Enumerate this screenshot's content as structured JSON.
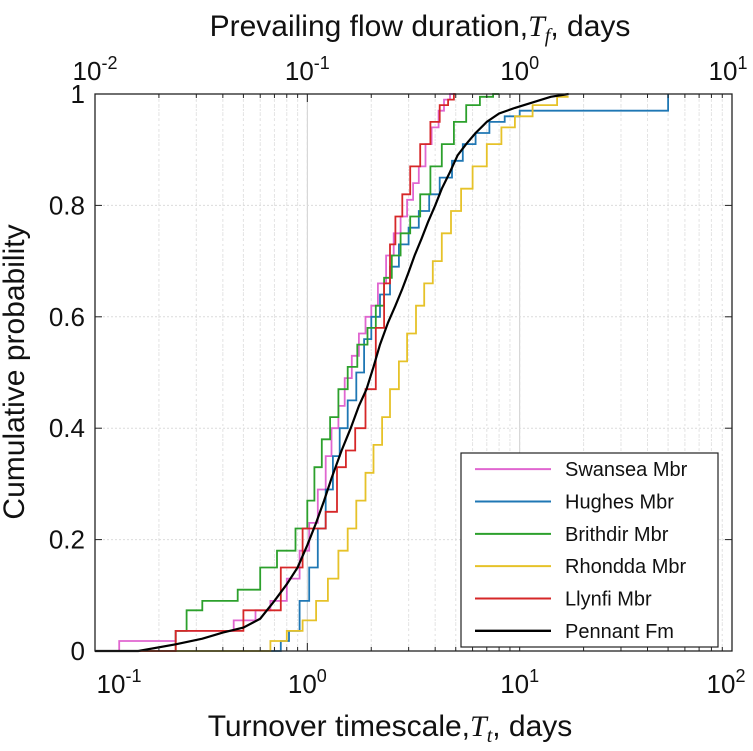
{
  "chart_data": {
    "type": "line",
    "subtype": "empirical-cdf-step",
    "title": "",
    "top_axis": {
      "label_main": "Prevailing flow duration,",
      "label_var": "T",
      "label_sub": "f",
      "label_unit": ", days",
      "scale": "log",
      "range": [
        0.01,
        10
      ],
      "ticks": [
        {
          "value": 0.01,
          "base": "10",
          "exp": "-2"
        },
        {
          "value": 0.1,
          "base": "10",
          "exp": "-1"
        },
        {
          "value": 1,
          "base": "10",
          "exp": "0"
        },
        {
          "value": 10,
          "base": "10",
          "exp": "1"
        }
      ]
    },
    "x_axis": {
      "label_main": "Turnover timescale,",
      "label_var": "T",
      "label_sub": "t",
      "label_unit": ", days",
      "scale": "log",
      "range": [
        0.1,
        100
      ],
      "ticks": [
        {
          "value": 0.1,
          "base": "10",
          "exp": "-1"
        },
        {
          "value": 1,
          "base": "10",
          "exp": "0"
        },
        {
          "value": 10,
          "base": "10",
          "exp": "1"
        },
        {
          "value": 100,
          "base": "10",
          "exp": "2"
        }
      ]
    },
    "y_axis": {
      "label": "Cumulative probability",
      "range": [
        0,
        1
      ],
      "ticks": [
        {
          "value": 0,
          "label": "0"
        },
        {
          "value": 0.2,
          "label": "0.2"
        },
        {
          "value": 0.4,
          "label": "0.4"
        },
        {
          "value": 0.6,
          "label": "0.6"
        },
        {
          "value": 0.8,
          "label": "0.8"
        },
        {
          "value": 1,
          "label": "1"
        }
      ]
    },
    "grid": true,
    "legend_position": "bottom-right",
    "series": [
      {
        "name": "Swansea Mbr",
        "color": "#e066d0",
        "x": [
          0.1,
          0.13,
          0.13,
          0.24,
          0.24,
          0.45,
          0.45,
          0.57,
          0.57,
          0.67,
          0.67,
          0.8,
          0.8,
          0.92,
          0.92,
          1.02,
          1.02,
          1.12,
          1.12,
          1.22,
          1.22,
          1.3,
          1.3,
          1.4,
          1.4,
          1.5,
          1.5,
          1.62,
          1.62,
          1.75,
          1.75,
          1.88,
          1.88,
          2.0,
          2.0,
          2.15,
          2.15,
          2.35,
          2.35,
          2.55,
          2.55,
          2.75,
          2.75,
          2.95,
          2.95,
          3.15,
          3.15,
          3.35,
          3.35,
          3.6,
          3.6,
          3.85,
          3.85,
          4.15,
          4.15,
          4.4,
          4.4,
          4.7,
          4.7,
          5.0
        ],
        "y": [
          0.0,
          0.0,
          0.018,
          0.018,
          0.036,
          0.036,
          0.055,
          0.055,
          0.073,
          0.073,
          0.09,
          0.09,
          0.13,
          0.13,
          0.18,
          0.18,
          0.23,
          0.23,
          0.29,
          0.29,
          0.35,
          0.35,
          0.4,
          0.4,
          0.44,
          0.44,
          0.49,
          0.49,
          0.53,
          0.53,
          0.57,
          0.57,
          0.6,
          0.6,
          0.62,
          0.62,
          0.66,
          0.66,
          0.71,
          0.71,
          0.75,
          0.75,
          0.78,
          0.78,
          0.81,
          0.81,
          0.84,
          0.84,
          0.87,
          0.87,
          0.91,
          0.91,
          0.94,
          0.94,
          0.97,
          0.97,
          0.99,
          0.99,
          1.0,
          1.0
        ]
      },
      {
        "name": "Hughes Mbr",
        "color": "#1f77b4",
        "x": [
          0.1,
          0.75,
          0.75,
          0.82,
          0.82,
          0.92,
          0.92,
          1.02,
          1.02,
          1.12,
          1.12,
          1.22,
          1.22,
          1.32,
          1.32,
          1.42,
          1.42,
          1.55,
          1.55,
          1.7,
          1.7,
          1.85,
          1.85,
          2.0,
          2.0,
          2.2,
          2.2,
          2.45,
          2.45,
          2.7,
          2.7,
          3.0,
          3.0,
          3.35,
          3.35,
          3.75,
          3.75,
          4.2,
          4.2,
          4.8,
          4.8,
          5.4,
          5.4,
          6.2,
          6.2,
          7.2,
          7.2,
          8.5,
          8.5,
          10.0,
          10.0,
          13.0,
          13.0,
          50.0,
          50.0
        ],
        "y": [
          0.0,
          0.0,
          0.018,
          0.018,
          0.036,
          0.036,
          0.09,
          0.09,
          0.15,
          0.15,
          0.22,
          0.22,
          0.29,
          0.29,
          0.35,
          0.35,
          0.4,
          0.4,
          0.45,
          0.45,
          0.5,
          0.5,
          0.56,
          0.56,
          0.6,
          0.6,
          0.64,
          0.64,
          0.69,
          0.69,
          0.73,
          0.73,
          0.76,
          0.76,
          0.79,
          0.79,
          0.82,
          0.82,
          0.85,
          0.85,
          0.88,
          0.88,
          0.91,
          0.91,
          0.93,
          0.93,
          0.95,
          0.95,
          0.96,
          0.96,
          0.97,
          0.97,
          0.97,
          0.97,
          1.0
        ]
      },
      {
        "name": "Brithdir Mbr",
        "color": "#2ca02c",
        "x": [
          0.1,
          0.24,
          0.24,
          0.27,
          0.27,
          0.32,
          0.32,
          0.47,
          0.47,
          0.6,
          0.6,
          0.72,
          0.72,
          0.88,
          0.88,
          1.0,
          1.0,
          1.08,
          1.08,
          1.17,
          1.17,
          1.28,
          1.28,
          1.4,
          1.4,
          1.55,
          1.55,
          1.72,
          1.72,
          1.92,
          1.92,
          2.1,
          2.1,
          2.3,
          2.3,
          2.5,
          2.5,
          2.75,
          2.75,
          3.05,
          3.05,
          3.4,
          3.4,
          3.8,
          3.8,
          4.3,
          4.3,
          4.9,
          4.9,
          5.6,
          5.6,
          6.5,
          6.5,
          7.5,
          7.5,
          8.0
        ],
        "y": [
          0.0,
          0.0,
          0.036,
          0.036,
          0.073,
          0.073,
          0.09,
          0.09,
          0.11,
          0.11,
          0.15,
          0.15,
          0.18,
          0.18,
          0.22,
          0.22,
          0.27,
          0.27,
          0.33,
          0.33,
          0.38,
          0.38,
          0.42,
          0.42,
          0.47,
          0.47,
          0.51,
          0.51,
          0.55,
          0.55,
          0.58,
          0.58,
          0.62,
          0.62,
          0.67,
          0.67,
          0.71,
          0.71,
          0.75,
          0.75,
          0.78,
          0.78,
          0.82,
          0.82,
          0.87,
          0.87,
          0.91,
          0.91,
          0.95,
          0.95,
          0.98,
          0.98,
          0.995,
          0.995,
          1.0,
          1.0
        ]
      },
      {
        "name": "Rhondda Mbr",
        "color": "#e6c229",
        "x": [
          0.1,
          0.67,
          0.67,
          0.8,
          0.8,
          0.95,
          0.95,
          1.1,
          1.1,
          1.25,
          1.25,
          1.4,
          1.4,
          1.55,
          1.55,
          1.7,
          1.7,
          1.88,
          1.88,
          2.05,
          2.05,
          2.25,
          2.25,
          2.45,
          2.45,
          2.7,
          2.7,
          2.95,
          2.95,
          3.25,
          3.25,
          3.55,
          3.55,
          3.9,
          3.9,
          4.3,
          4.3,
          4.75,
          4.75,
          5.3,
          5.3,
          6.0,
          6.0,
          7.0,
          7.0,
          8.2,
          8.2,
          9.5,
          9.5,
          11.5,
          11.5,
          15.0,
          15.0,
          17.0
        ],
        "y": [
          0.0,
          0.0,
          0.018,
          0.018,
          0.036,
          0.036,
          0.055,
          0.055,
          0.09,
          0.09,
          0.13,
          0.13,
          0.18,
          0.18,
          0.22,
          0.22,
          0.27,
          0.27,
          0.32,
          0.32,
          0.37,
          0.37,
          0.42,
          0.42,
          0.47,
          0.47,
          0.52,
          0.52,
          0.57,
          0.57,
          0.62,
          0.62,
          0.66,
          0.66,
          0.7,
          0.7,
          0.75,
          0.75,
          0.79,
          0.79,
          0.83,
          0.83,
          0.87,
          0.87,
          0.91,
          0.91,
          0.94,
          0.94,
          0.96,
          0.96,
          0.98,
          0.98,
          0.995,
          0.995
        ]
      },
      {
        "name": "Llynfi Mbr",
        "color": "#d62728",
        "x": [
          0.1,
          0.24,
          0.24,
          0.5,
          0.5,
          0.75,
          0.75,
          0.95,
          0.95,
          1.22,
          1.22,
          1.38,
          1.38,
          1.52,
          1.52,
          1.68,
          1.68,
          1.88,
          1.88,
          2.1,
          2.1,
          2.3,
          2.3,
          2.45,
          2.45,
          2.6,
          2.6,
          2.8,
          2.8,
          3.05,
          3.05,
          3.4,
          3.4,
          3.8,
          3.8,
          4.2,
          4.2,
          4.6,
          4.6,
          4.9,
          4.9,
          5.0
        ],
        "y": [
          0.0,
          0.0,
          0.036,
          0.036,
          0.073,
          0.073,
          0.15,
          0.15,
          0.22,
          0.22,
          0.25,
          0.25,
          0.33,
          0.33,
          0.36,
          0.36,
          0.4,
          0.4,
          0.47,
          0.47,
          0.58,
          0.58,
          0.66,
          0.66,
          0.73,
          0.73,
          0.78,
          0.78,
          0.82,
          0.82,
          0.87,
          0.87,
          0.91,
          0.91,
          0.95,
          0.95,
          0.98,
          0.98,
          0.99,
          0.99,
          1.0,
          1.0
        ]
      },
      {
        "name": "Pennant Fm",
        "color": "#000000",
        "x": [
          0.1,
          0.16,
          0.24,
          0.32,
          0.4,
          0.5,
          0.6,
          0.7,
          0.8,
          0.9,
          1.0,
          1.1,
          1.2,
          1.3,
          1.45,
          1.6,
          1.75,
          1.9,
          2.05,
          2.2,
          2.4,
          2.6,
          2.8,
          3.0,
          3.2,
          3.45,
          3.7,
          4.0,
          4.3,
          4.7,
          5.1,
          5.6,
          6.2,
          7.0,
          8.0,
          9.5,
          11.5,
          14.0,
          17.0
        ],
        "y": [
          0.0,
          0.0,
          0.012,
          0.022,
          0.033,
          0.042,
          0.058,
          0.09,
          0.12,
          0.15,
          0.19,
          0.23,
          0.27,
          0.31,
          0.36,
          0.4,
          0.44,
          0.47,
          0.51,
          0.55,
          0.59,
          0.62,
          0.65,
          0.68,
          0.71,
          0.74,
          0.77,
          0.8,
          0.83,
          0.86,
          0.89,
          0.91,
          0.93,
          0.95,
          0.965,
          0.975,
          0.985,
          0.995,
          1.0
        ]
      }
    ]
  }
}
